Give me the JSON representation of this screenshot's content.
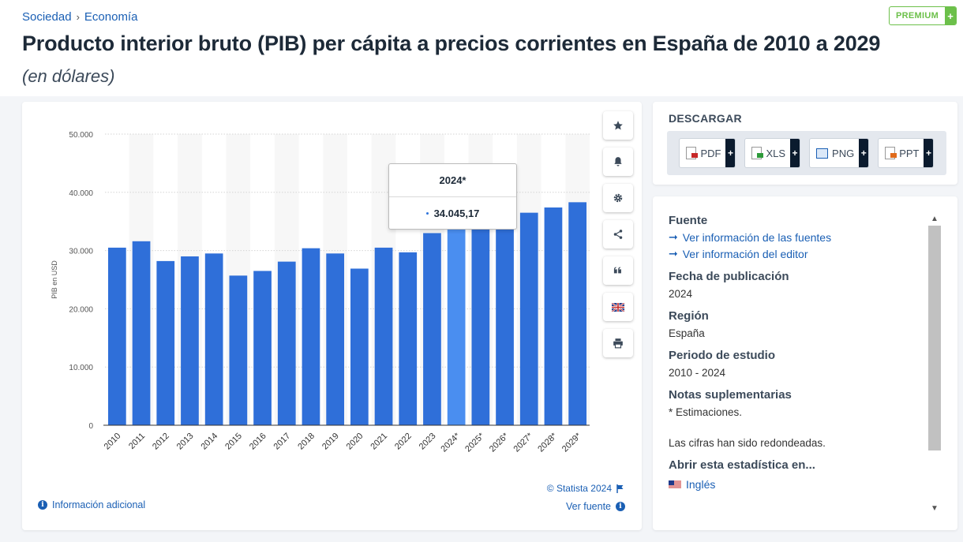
{
  "breadcrumb": {
    "items": [
      "Sociedad",
      "Economía"
    ],
    "separator": "›"
  },
  "premium": {
    "label": "PREMIUM",
    "plus": "+"
  },
  "title": "Producto interior bruto (PIB) per cápita a precios corrientes en España de 2010 a 2029",
  "subtitle": "(en dólares)",
  "chart_data": {
    "type": "bar",
    "title": "",
    "xlabel": "",
    "ylabel": "PIB en USD",
    "categories": [
      "2010",
      "2011",
      "2012",
      "2013",
      "2014",
      "2015",
      "2016",
      "2017",
      "2018",
      "2019",
      "2020",
      "2021",
      "2022",
      "2023",
      "2024*",
      "2025*",
      "2026*",
      "2027*",
      "2028*",
      "2029*"
    ],
    "values": [
      30500,
      31600,
      28200,
      29000,
      29500,
      25700,
      26500,
      28100,
      30400,
      29500,
      26900,
      30500,
      29700,
      33000,
      34045.17,
      34700,
      35500,
      36500,
      37400,
      38300
    ],
    "ylim": [
      0,
      50000
    ],
    "yticks": [
      0,
      10000,
      20000,
      30000,
      40000,
      50000
    ],
    "ytick_labels": [
      "0",
      "10.000",
      "20.000",
      "30.000",
      "40.000",
      "50.000"
    ],
    "bar_color": "#2f6fd9",
    "highlight_color": "#4a8ef0",
    "highlight_index": 14,
    "grid": true,
    "legend": "none"
  },
  "tooltip": {
    "title": "2024*",
    "value": "34.045,17"
  },
  "chart_tools": [
    "star-icon",
    "bell-icon",
    "gear-icon",
    "share-icon",
    "quote-icon",
    "flag-uk-icon",
    "print-icon"
  ],
  "chart_footer": {
    "info_link": "Información adicional",
    "copyright": "© Statista 2024",
    "source_link": "Ver fuente"
  },
  "download": {
    "title": "DESCARGAR",
    "buttons": [
      {
        "label": "PDF",
        "color": "#c62828"
      },
      {
        "label": "XLS",
        "color": "#2e9a3a"
      },
      {
        "label": "PNG",
        "color": "#1a5fb4"
      },
      {
        "label": "PPT",
        "color": "#e06a1b"
      }
    ],
    "plus": "+"
  },
  "info": {
    "source_heading": "Fuente",
    "source_links": [
      "Ver información de las fuentes",
      "Ver información del editor"
    ],
    "pub_heading": "Fecha de publicación",
    "pub_value": "2024",
    "region_heading": "Región",
    "region_value": "España",
    "period_heading": "Periodo de estudio",
    "period_value": "2010 - 2024",
    "notes_heading": "Notas suplementarias",
    "notes_value_1": "* Estimaciones.",
    "notes_value_2": "Las cifras han sido redondeadas.",
    "open_heading": "Abrir esta estadística en...",
    "open_language": "Inglés"
  }
}
